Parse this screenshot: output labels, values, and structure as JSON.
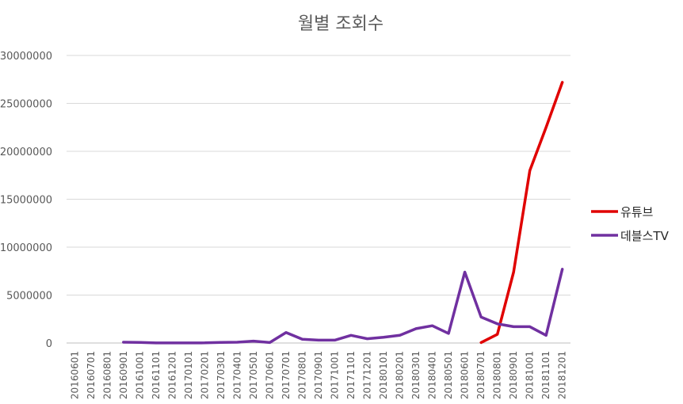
{
  "chart_data": {
    "type": "line",
    "title": "월별 조회수",
    "xlabel": "",
    "ylabel": "",
    "ylim": [
      0,
      30000000
    ],
    "yticks": [
      0,
      5000000,
      10000000,
      15000000,
      20000000,
      25000000,
      30000000
    ],
    "grid": true,
    "legend_position": "right",
    "categories": [
      "20160601",
      "20160701",
      "20160801",
      "20160901",
      "20161001",
      "20161101",
      "20161201",
      "20170101",
      "20170201",
      "20170301",
      "20170401",
      "20170501",
      "20170601",
      "20170701",
      "20170801",
      "20170901",
      "20171001",
      "20171101",
      "20171201",
      "20180101",
      "20180201",
      "20180301",
      "20180401",
      "20180501",
      "20180601",
      "20180701",
      "20180801",
      "20180901",
      "20181001",
      "20181101",
      "20181201"
    ],
    "series": [
      {
        "name": "유튜브",
        "color": "#e00000",
        "values": [
          null,
          null,
          null,
          null,
          null,
          null,
          null,
          null,
          null,
          null,
          null,
          null,
          null,
          null,
          null,
          null,
          null,
          null,
          null,
          null,
          null,
          null,
          null,
          null,
          null,
          50000,
          900000,
          7400000,
          18000000,
          22500000,
          27200000
        ]
      },
      {
        "name": "데블스TV",
        "color": "#7030a0",
        "values": [
          null,
          null,
          null,
          80000,
          60000,
          10000,
          10000,
          10000,
          20000,
          70000,
          80000,
          200000,
          50000,
          1100000,
          400000,
          300000,
          300000,
          800000,
          450000,
          600000,
          800000,
          1500000,
          1800000,
          1000000,
          7400000,
          2700000,
          2000000,
          1700000,
          1700000,
          800000,
          7700000
        ]
      }
    ]
  }
}
